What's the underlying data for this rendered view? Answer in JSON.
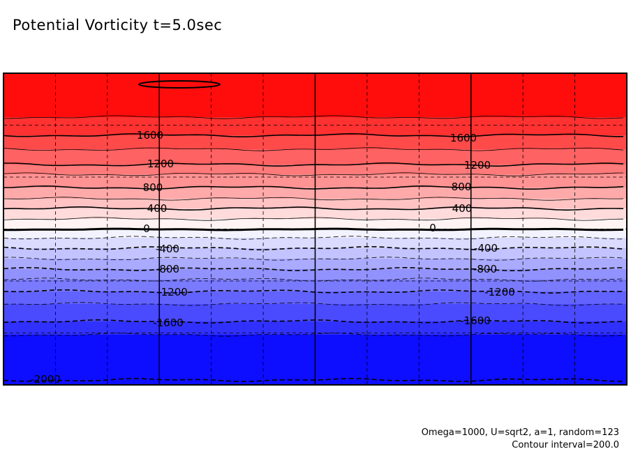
{
  "chart_data": {
    "type": "contour",
    "title": "Potential Vorticity t=5.0sec",
    "variable": "Potential Vorticity",
    "time": "t=5.0sec",
    "contour_interval": 200,
    "value_range": [
      -2000,
      2000
    ],
    "contour_levels": [
      -2000,
      -1800,
      -1600,
      -1400,
      -1200,
      -1000,
      -800,
      -600,
      -400,
      -200,
      0,
      200,
      400,
      600,
      800,
      1000,
      1200,
      1400,
      1600,
      1800
    ],
    "labeled_levels": [
      {
        "text": "1600",
        "value": 1600
      },
      {
        "text": "1200",
        "value": 1200
      },
      {
        "text": "800",
        "value": 800
      },
      {
        "text": "400",
        "value": 400
      },
      {
        "text": "0",
        "value": 0
      },
      {
        "text": "-400",
        "value": -400
      },
      {
        "text": "-800",
        "value": -800
      },
      {
        "text": "-1200",
        "value": -1200
      },
      {
        "text": "-1600",
        "value": -1600
      },
      {
        "text": "-2000",
        "value": -2000
      }
    ],
    "colormap": {
      "positive": "#ff0d0d",
      "neutral": "#ffffff",
      "negative": "#0d0dff"
    },
    "negative_contours_style": "dashed",
    "grid": true
  },
  "footnote": {
    "params": "Omega=1000, U=sqrt2, a=1, random=123",
    "interval_text": "Contour interval=200.0"
  }
}
